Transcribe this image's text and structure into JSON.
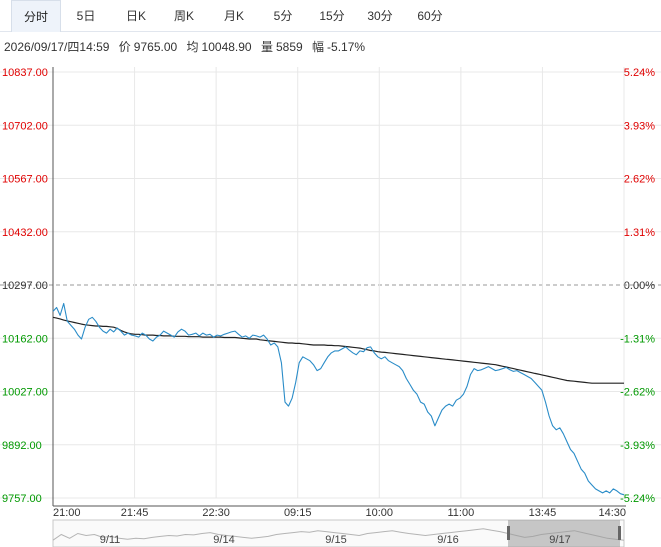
{
  "tabs": [
    {
      "label": "分时",
      "active": true
    },
    {
      "label": "5日"
    },
    {
      "label": "日K"
    },
    {
      "label": "周K"
    },
    {
      "label": "月K"
    },
    {
      "label": "5分"
    },
    {
      "label": "15分"
    },
    {
      "label": "30分"
    },
    {
      "label": "60分"
    }
  ],
  "info": {
    "datetime": "2026/09/17/四14:59",
    "price_label": "价",
    "price": "9765.00",
    "avg_label": "均",
    "avg": "10048.90",
    "vol_label": "量",
    "vol": "5859",
    "chg_label": "幅",
    "chg": "-5.17%"
  },
  "colors": {
    "up": "#e00000",
    "down": "#009900",
    "price_line": "#2a8cc8",
    "avg_line": "#222222",
    "grid": "#e8e8e8"
  },
  "chart_data": {
    "type": "line",
    "title": "",
    "base_price": 10297.0,
    "ylim": [
      9757.0,
      10837.0
    ],
    "y_ticks_left": [
      "10837.00",
      "10702.00",
      "10567.00",
      "10432.00",
      "10297.00",
      "10162.00",
      "10027.00",
      "9892.00",
      "9757.00"
    ],
    "y_ticks_right": [
      "5.24%",
      "3.93%",
      "2.62%",
      "1.31%",
      "0.00%",
      "-1.31%",
      "-2.62%",
      "-3.93%",
      "-5.24%"
    ],
    "x_ticks": [
      "21:00",
      "21:45",
      "22:30",
      "09:15",
      "10:00",
      "11:00",
      "13:45",
      "14:30"
    ],
    "nav_labels": [
      "9/11",
      "9/14",
      "9/15",
      "9/16",
      "9/17"
    ],
    "series": [
      {
        "values": [
          10230,
          10240,
          10220,
          10250,
          10205,
          10195,
          10185,
          10170,
          10160,
          10190,
          10210,
          10215,
          10205,
          10190,
          10180,
          10175,
          10185,
          10178,
          10188,
          10180,
          10170,
          10175,
          10170,
          10168,
          10165,
          10175,
          10170,
          10160,
          10155,
          10165,
          10170,
          10180,
          10175,
          10170,
          10165,
          10178,
          10185,
          10180,
          10170,
          10172,
          10175,
          10168,
          10175,
          10170,
          10172,
          10165,
          10170,
          10168,
          10172,
          10175,
          10178,
          10180,
          10172,
          10165,
          10168,
          10162,
          10170,
          10168,
          10165,
          10170,
          10160,
          10145,
          10150,
          10140,
          10100,
          10000,
          9990,
          10010,
          10050,
          10100,
          10115,
          10110,
          10105,
          10095,
          10080,
          10085,
          10100,
          10115,
          10125,
          10130,
          10130,
          10135,
          10140,
          10132,
          10125,
          10120,
          10130,
          10128,
          10138,
          10140,
          10125,
          10115,
          10110,
          10115,
          10105,
          10100,
          10095,
          10090,
          10080,
          10060,
          10045,
          10030,
          10020,
          10000,
          9995,
          9975,
          9965,
          9940,
          9960,
          9980,
          9990,
          9995,
          9990,
          10005,
          10010,
          10020,
          10040,
          10070,
          10085,
          10080,
          10082,
          10086,
          10090,
          10085,
          10080,
          10082,
          10085,
          10088,
          10082,
          10078,
          10080,
          10075,
          10070,
          10065,
          10060,
          10050,
          10040,
          10030,
          10000,
          9965,
          9940,
          9930,
          9935,
          9920,
          9900,
          9880,
          9870,
          9850,
          9830,
          9820,
          9800,
          9790,
          9780,
          9775,
          9770,
          9775,
          9770,
          9780,
          9775,
          9768,
          9765
        ]
      },
      {
        "values": [
          10215,
          10213,
          10211,
          10208,
          10206,
          10204,
          10202,
          10200,
          10198,
          10196,
          10195,
          10194,
          10193,
          10193,
          10192,
          10192,
          10191,
          10190,
          10187,
          10182,
          10178,
          10175,
          10173,
          10172,
          10172,
          10171,
          10170,
          10170,
          10170,
          10169,
          10169,
          10168,
          10168,
          10168,
          10167,
          10167,
          10167,
          10167,
          10166,
          10166,
          10166,
          10166,
          10165,
          10165,
          10165,
          10165,
          10165,
          10165,
          10164,
          10164,
          10164,
          10164,
          10163,
          10162,
          10161,
          10160,
          10160,
          10160,
          10158,
          10157,
          10156,
          10155,
          10154,
          10153,
          10152,
          10151,
          10150,
          10150,
          10149,
          10149,
          10148,
          10147,
          10146,
          10145,
          10145,
          10145,
          10145,
          10144,
          10144,
          10143,
          10143,
          10142,
          10141,
          10140,
          10139,
          10138,
          10137,
          10135,
          10133,
          10131,
          10130,
          10128,
          10127,
          10126,
          10125,
          10124,
          10123,
          10122,
          10121,
          10120,
          10119,
          10118,
          10117,
          10116,
          10115,
          10114,
          10113,
          10112,
          10111,
          10110,
          10109,
          10108,
          10107,
          10106,
          10105,
          10104,
          10103,
          10102,
          10101,
          10100,
          10099,
          10098,
          10097,
          10096,
          10095,
          10093,
          10091,
          10089,
          10087,
          10085,
          10083,
          10081,
          10079,
          10077,
          10075,
          10073,
          10071,
          10069,
          10067,
          10065,
          10063,
          10061,
          10059,
          10057,
          10055,
          10054,
          10053,
          10052,
          10051,
          10050,
          10049,
          10048,
          10048,
          10048,
          10048,
          10048,
          10048,
          10048,
          10048,
          10048,
          10048
        ]
      }
    ],
    "nav_series": [
      0.2,
      0.5,
      0.3,
      0.55,
      0.45,
      0.5,
      0.35,
      0.4,
      0.3,
      0.25,
      0.3,
      0.28,
      0.35,
      0.4,
      0.45,
      0.42,
      0.5,
      0.48,
      0.55,
      0.6,
      0.5,
      0.45,
      0.4,
      0.35,
      0.3,
      0.35,
      0.4,
      0.5,
      0.55,
      0.6,
      0.65,
      0.62,
      0.7,
      0.65,
      0.6,
      0.55,
      0.5,
      0.45,
      0.55,
      0.6,
      0.65,
      0.7,
      0.62,
      0.55,
      0.5,
      0.45,
      0.5,
      0.55,
      0.6,
      0.65,
      0.7,
      0.75,
      0.8,
      0.72,
      0.65,
      0.55,
      0.45,
      0.35,
      0.4,
      0.5,
      0.55,
      0.6,
      0.65,
      0.7,
      0.6,
      0.5,
      0.4,
      0.3,
      0.25,
      0.2
    ]
  }
}
